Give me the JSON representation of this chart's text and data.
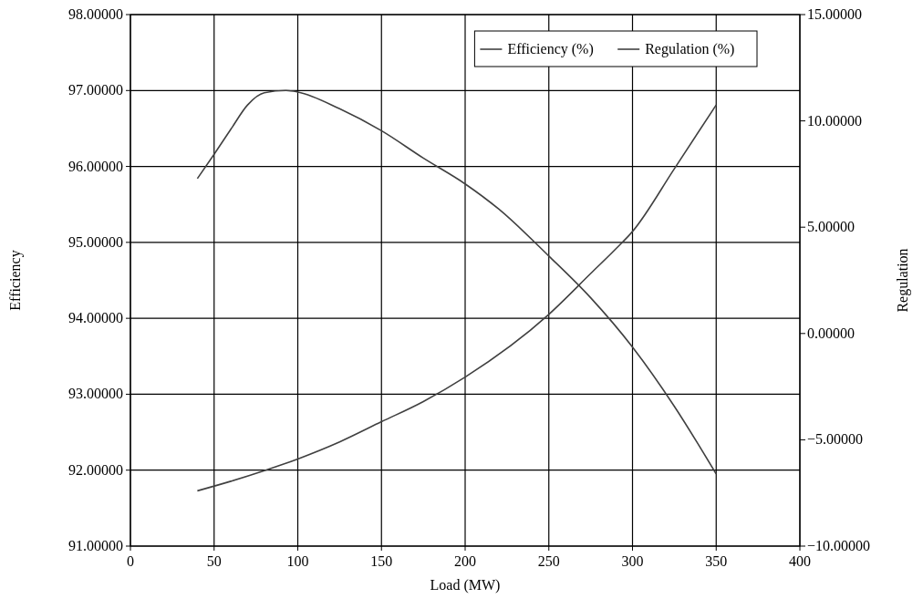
{
  "chart_data": {
    "type": "line",
    "xlabel": "Load (MW)",
    "ylabel": "Efficiency",
    "y2label": "Regulation",
    "xlim": [
      0,
      400
    ],
    "xticks": [
      0,
      50,
      100,
      150,
      200,
      250,
      300,
      350,
      400
    ],
    "ylim": [
      91,
      98
    ],
    "yticks": [
      {
        "value": 91,
        "label": "91.00000"
      },
      {
        "value": 92,
        "label": "92.00000"
      },
      {
        "value": 93,
        "label": "93.00000"
      },
      {
        "value": 94,
        "label": "94.00000"
      },
      {
        "value": 95,
        "label": "95.00000"
      },
      {
        "value": 96,
        "label": "96.00000"
      },
      {
        "value": 97,
        "label": "97.00000"
      },
      {
        "value": 98,
        "label": "98.00000"
      }
    ],
    "y2lim": [
      -10,
      15
    ],
    "y2ticks": [
      {
        "value": -10,
        "label": "−10.00000"
      },
      {
        "value": -5,
        "label": "−5.00000"
      },
      {
        "value": 0,
        "label": "0.00000"
      },
      {
        "value": 5,
        "label": "5.00000"
      },
      {
        "value": 10,
        "label": "10.00000"
      },
      {
        "value": 15,
        "label": "15.00000"
      }
    ],
    "grid": true,
    "legend": "top right",
    "marker": "none",
    "line_style": "solid",
    "series": [
      {
        "name": "Efficiency (%)",
        "color": "#404040",
        "x": [
          40,
          50,
          60,
          70,
          80,
          93,
          100,
          125,
          150,
          175,
          200,
          220,
          250,
          275,
          300,
          325,
          350
        ],
        "values": [
          95.84,
          96.16,
          96.49,
          96.81,
          96.97,
          97.0,
          96.98,
          96.76,
          96.47,
          96.11,
          95.77,
          95.44,
          94.82,
          94.27,
          93.62,
          92.84,
          91.95
        ]
      },
      {
        "name": "Regulation (%)",
        "color": "#404040",
        "axis": "y2",
        "x": [
          40,
          60,
          80,
          100,
          125,
          150,
          175,
          200,
          250,
          275,
          290,
          300,
          325,
          350
        ],
        "values": [
          -7.4,
          -6.95,
          -6.45,
          -5.9,
          -5.1,
          -4.15,
          -3.2,
          -2.05,
          0.9,
          2.82,
          3.98,
          4.8,
          7.75,
          10.75
        ]
      }
    ]
  }
}
